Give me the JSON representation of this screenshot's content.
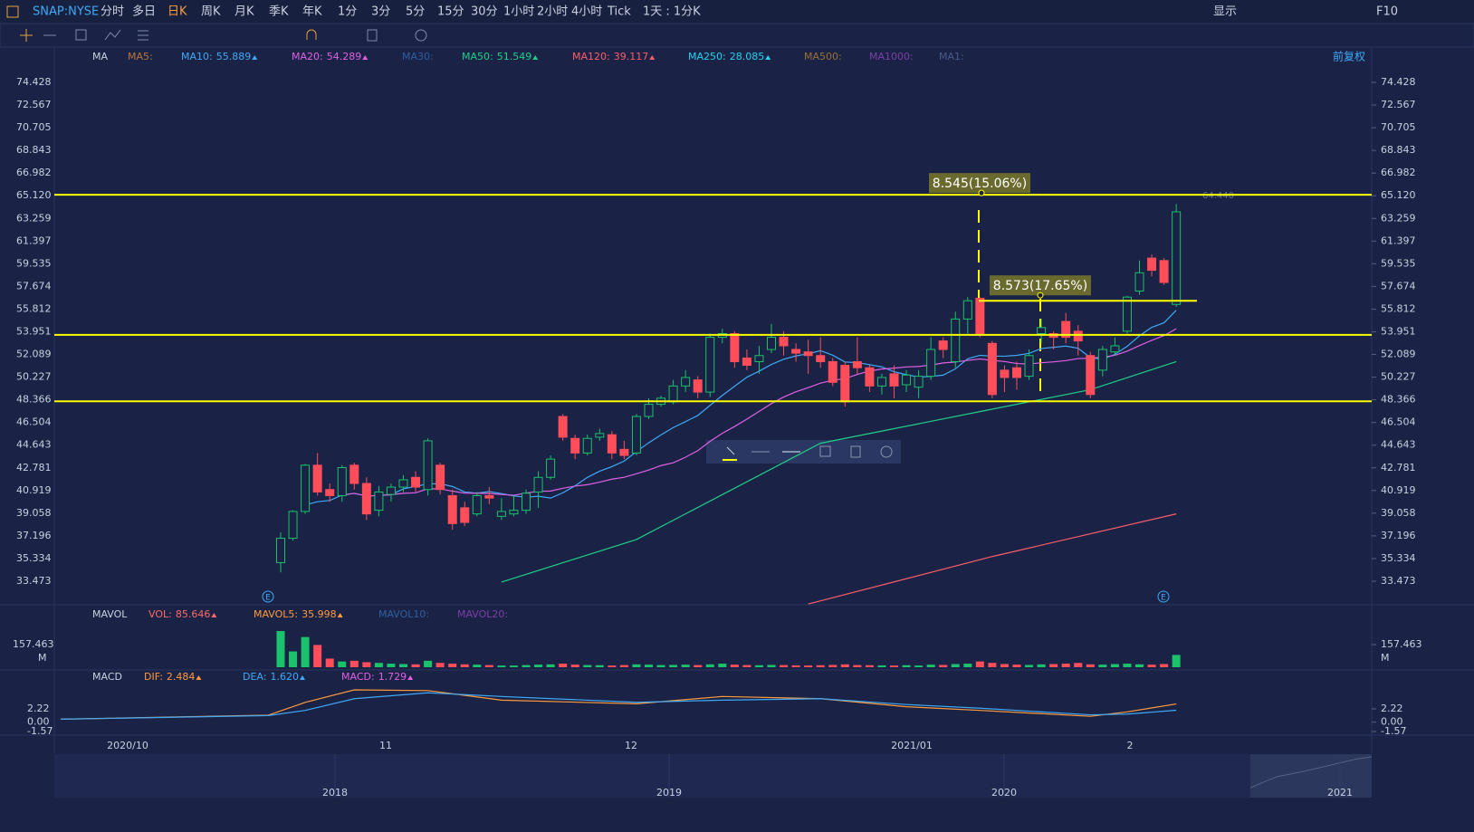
{
  "toolbar": {
    "symbol": "SNAP:NYSE",
    "periods": [
      "分时",
      "多日",
      "日K",
      "周K",
      "月K",
      "季K",
      "年K",
      "1分",
      "3分",
      "5分",
      "15分",
      "30分",
      "1小时",
      "2小时",
      "4小时",
      "Tick"
    ],
    "active_period": 2,
    "interval": "1天 : 1分K",
    "display": "显示",
    "f10": "F10"
  },
  "main": {
    "indicator": "MA",
    "adjust": "前复权",
    "ma": [
      {
        "name": "MA5:",
        "color": "#b8763e"
      },
      {
        "name": "MA10:",
        "value": 55.889,
        "color": "#3fa9f5"
      },
      {
        "name": "MA20:",
        "value": 54.289,
        "color": "#e060e0"
      },
      {
        "name": "MA30:",
        "color": "#2f5f9e"
      },
      {
        "name": "MA50:",
        "value": 51.549,
        "color": "#1fcf8a"
      },
      {
        "name": "MA120:",
        "value": 39.117,
        "color": "#ff5c6a"
      },
      {
        "name": "MA250:",
        "value": 28.085,
        "color": "#22d3f0"
      },
      {
        "name": "MA500:",
        "color": "#9a7035"
      },
      {
        "name": "MA1000:",
        "color": "#7c3fa6"
      },
      {
        "name": "MA1:",
        "color": "#4a5a8a"
      }
    ],
    "ylim": [
      33.473,
      74.428
    ],
    "yticks": [
      74.428,
      72.567,
      70.705,
      68.843,
      {
        "value": 66.982,
        "label": "66.982"
      },
      {
        "value": 65.12,
        "label": "65.120"
      },
      63.259,
      61.397,
      59.535,
      57.674,
      55.812,
      53.951,
      52.089,
      50.227,
      48.366,
      46.504,
      44.643,
      42.781,
      40.919,
      39.058,
      37.196,
      35.334,
      33.473
    ],
    "candles": [
      [
        35.0,
        37.5,
        34.2,
        37.0
      ],
      [
        37.0,
        39.3,
        36.8,
        39.2
      ],
      [
        39.2,
        43.1,
        39.0,
        43.0
      ],
      [
        43.0,
        44.0,
        40.5,
        40.8
      ],
      [
        41.0,
        41.5,
        40.0,
        40.5
      ],
      [
        40.5,
        43.0,
        40.0,
        42.8
      ],
      [
        43.0,
        43.2,
        41.0,
        41.5
      ],
      [
        41.5,
        42.0,
        38.5,
        39.0
      ],
      [
        39.3,
        41.3,
        38.8,
        40.8
      ],
      [
        40.6,
        41.5,
        40.0,
        41.2
      ],
      [
        41.2,
        42.2,
        40.8,
        41.8
      ],
      [
        42.0,
        42.5,
        40.8,
        41.2
      ],
      [
        41.0,
        45.2,
        40.5,
        45.0
      ],
      [
        43.0,
        43.2,
        40.6,
        41.0
      ],
      [
        40.5,
        41.0,
        37.7,
        38.2
      ],
      [
        39.5,
        40.0,
        38.0,
        38.3
      ],
      [
        39.0,
        40.8,
        38.8,
        40.5
      ],
      [
        40.5,
        41.2,
        39.8,
        40.3
      ],
      [
        38.8,
        40.3,
        38.5,
        39.2
      ],
      [
        39.0,
        40.5,
        38.8,
        39.3
      ],
      [
        39.3,
        41.0,
        39.0,
        40.7
      ],
      [
        40.8,
        42.5,
        39.5,
        42.0
      ],
      [
        42.0,
        43.8,
        41.8,
        43.5
      ],
      [
        47.0,
        47.2,
        45.0,
        45.3
      ],
      [
        45.2,
        45.5,
        43.5,
        44.0
      ],
      [
        44.0,
        45.5,
        43.8,
        45.2
      ],
      [
        45.3,
        46.0,
        45.0,
        45.6
      ],
      [
        45.5,
        45.8,
        43.5,
        44.0
      ],
      [
        44.3,
        45.0,
        43.5,
        43.8
      ],
      [
        44.0,
        47.2,
        43.8,
        47.0
      ],
      [
        47.0,
        48.5,
        46.8,
        48.0
      ],
      [
        48.0,
        48.7,
        47.8,
        48.5
      ],
      [
        48.2,
        50.0,
        48.0,
        49.5
      ],
      [
        49.5,
        50.8,
        49.0,
        50.2
      ],
      [
        50.0,
        50.3,
        48.5,
        49.0
      ],
      [
        49.0,
        53.8,
        48.6,
        53.5
      ],
      [
        53.5,
        54.2,
        53.0,
        53.8
      ],
      [
        53.8,
        54.0,
        51.0,
        51.5
      ],
      [
        51.8,
        52.5,
        50.8,
        51.2
      ],
      [
        51.5,
        52.8,
        50.5,
        52.0
      ],
      [
        52.5,
        54.6,
        52.2,
        53.5
      ],
      [
        53.5,
        54.0,
        52.0,
        52.8
      ],
      [
        52.5,
        53.0,
        51.5,
        52.2
      ],
      [
        52.3,
        53.3,
        50.5,
        52.0
      ],
      [
        52.0,
        53.5,
        51.0,
        51.5
      ],
      [
        51.5,
        51.8,
        49.5,
        49.8
      ],
      [
        51.2,
        51.5,
        47.8,
        48.2
      ],
      [
        51.5,
        53.5,
        50.5,
        51.0
      ],
      [
        51.0,
        51.2,
        49.0,
        49.5
      ],
      [
        49.5,
        50.5,
        48.8,
        50.2
      ],
      [
        50.5,
        51.2,
        48.5,
        49.5
      ],
      [
        49.6,
        50.8,
        49.0,
        50.4
      ],
      [
        49.4,
        50.8,
        48.5,
        50.3
      ],
      [
        50.3,
        53.5,
        50.0,
        52.5
      ],
      [
        53.2,
        53.5,
        51.8,
        52.5
      ],
      [
        51.5,
        55.6,
        51.0,
        55.0
      ],
      [
        55.0,
        56.8,
        53.8,
        56.5
      ],
      [
        56.7,
        56.8,
        53.5,
        53.8
      ],
      [
        53.0,
        53.2,
        48.5,
        48.8
      ],
      [
        50.8,
        51.2,
        49.0,
        50.2
      ],
      [
        51.0,
        51.5,
        49.2,
        50.2
      ],
      [
        50.3,
        52.5,
        50.0,
        52.0
      ],
      [
        53.8,
        55.0,
        53.0,
        54.3
      ],
      [
        53.8,
        54.0,
        52.5,
        53.5
      ],
      [
        54.8,
        55.5,
        53.0,
        53.5
      ],
      [
        54.0,
        54.5,
        52.0,
        53.2
      ],
      [
        52.0,
        52.3,
        48.5,
        48.8
      ],
      [
        50.8,
        52.8,
        50.3,
        52.5
      ],
      [
        52.3,
        53.5,
        52.0,
        52.8
      ],
      [
        54.0,
        56.9,
        53.8,
        56.8
      ],
      [
        57.3,
        59.8,
        57.0,
        58.8
      ],
      [
        60.0,
        60.3,
        58.5,
        59.0
      ],
      [
        59.8,
        60.0,
        57.8,
        58.0
      ],
      [
        56.2,
        64.44,
        56.0,
        63.8
      ]
    ],
    "ma50": {
      "index": [
        18,
        29,
        44,
        57,
        66,
        73
      ],
      "values": [
        33.4,
        36.9,
        44.8,
        47.4,
        49.2,
        51.5
      ]
    },
    "ma120": {
      "index": [
        43,
        58,
        73
      ],
      "values": [
        31.6,
        35.5,
        39.0
      ]
    },
    "levels": [
      65.2,
      53.7,
      48.25
    ],
    "measure": [
      {
        "label": "8.545(15.06%)"
      },
      {
        "label": "8.573(17.65%)"
      }
    ],
    "high_label": "64.440",
    "earnings": "E"
  },
  "volume": {
    "indicator": "MAVOL",
    "labels": [
      {
        "name": "VOL:",
        "value": 85.646,
        "color": "#ff6a6a"
      },
      {
        "name": "MAVOL5:",
        "value": 35.998,
        "color": "#ff9a3c"
      },
      {
        "name": "MAVOL10:",
        "color": "#2f5f9e"
      },
      {
        "name": "MAVOL20:",
        "color": "#7c3fa6"
      }
    ],
    "ylim": [
      0,
      157.463
    ],
    "yticks": [
      157.463
    ],
    "unit": "M",
    "values": [
      252,
      110,
      210,
      155,
      60,
      40,
      45,
      35,
      30,
      25,
      22,
      20,
      45,
      30,
      25,
      20,
      18,
      15,
      12,
      12,
      15,
      18,
      20,
      25,
      18,
      15,
      14,
      12,
      15,
      20,
      18,
      15,
      16,
      18,
      15,
      20,
      25,
      18,
      15,
      14,
      16,
      15,
      13,
      12,
      14,
      16,
      20,
      15,
      14,
      13,
      12,
      14,
      12,
      18,
      16,
      22,
      25,
      40,
      30,
      22,
      18,
      16,
      20,
      22,
      25,
      30,
      20,
      18,
      22,
      25,
      20,
      18,
      22,
      85.646
    ]
  },
  "macd": {
    "indicator": "MACD",
    "labels": [
      {
        "name": "DIF:",
        "value": 2.484,
        "color": "#ff9a3c"
      },
      {
        "name": "DEA:",
        "value": "1.620",
        "color": "#3fa9f5"
      },
      {
        "name": "MACD:",
        "value": 1.729,
        "color": "#e060e0"
      }
    ],
    "ylim": [
      -1.57,
      2.22
    ],
    "yticks": [
      2.22,
      {
        "value": 0,
        "label": "0.00"
      },
      -1.57
    ],
    "x_index": [
      -18,
      -1,
      2,
      6,
      12,
      18,
      29,
      36,
      44,
      51,
      57,
      66,
      69,
      73
    ],
    "dif": [
      0.4,
      0.95,
      2.7,
      4.4,
      4.3,
      3.0,
      2.5,
      3.5,
      3.2,
      2.1,
      1.6,
      0.8,
      1.4,
      2.484
    ],
    "dea": [
      0.4,
      0.9,
      1.6,
      3.2,
      4.0,
      3.5,
      2.7,
      3.0,
      3.2,
      2.4,
      1.9,
      1.0,
      1.1,
      1.62
    ]
  },
  "time_axis": [
    "2020/10",
    "11",
    "12",
    "2021/01",
    "2"
  ],
  "navigator": [
    "2018",
    "2019",
    "2020",
    "2021"
  ]
}
